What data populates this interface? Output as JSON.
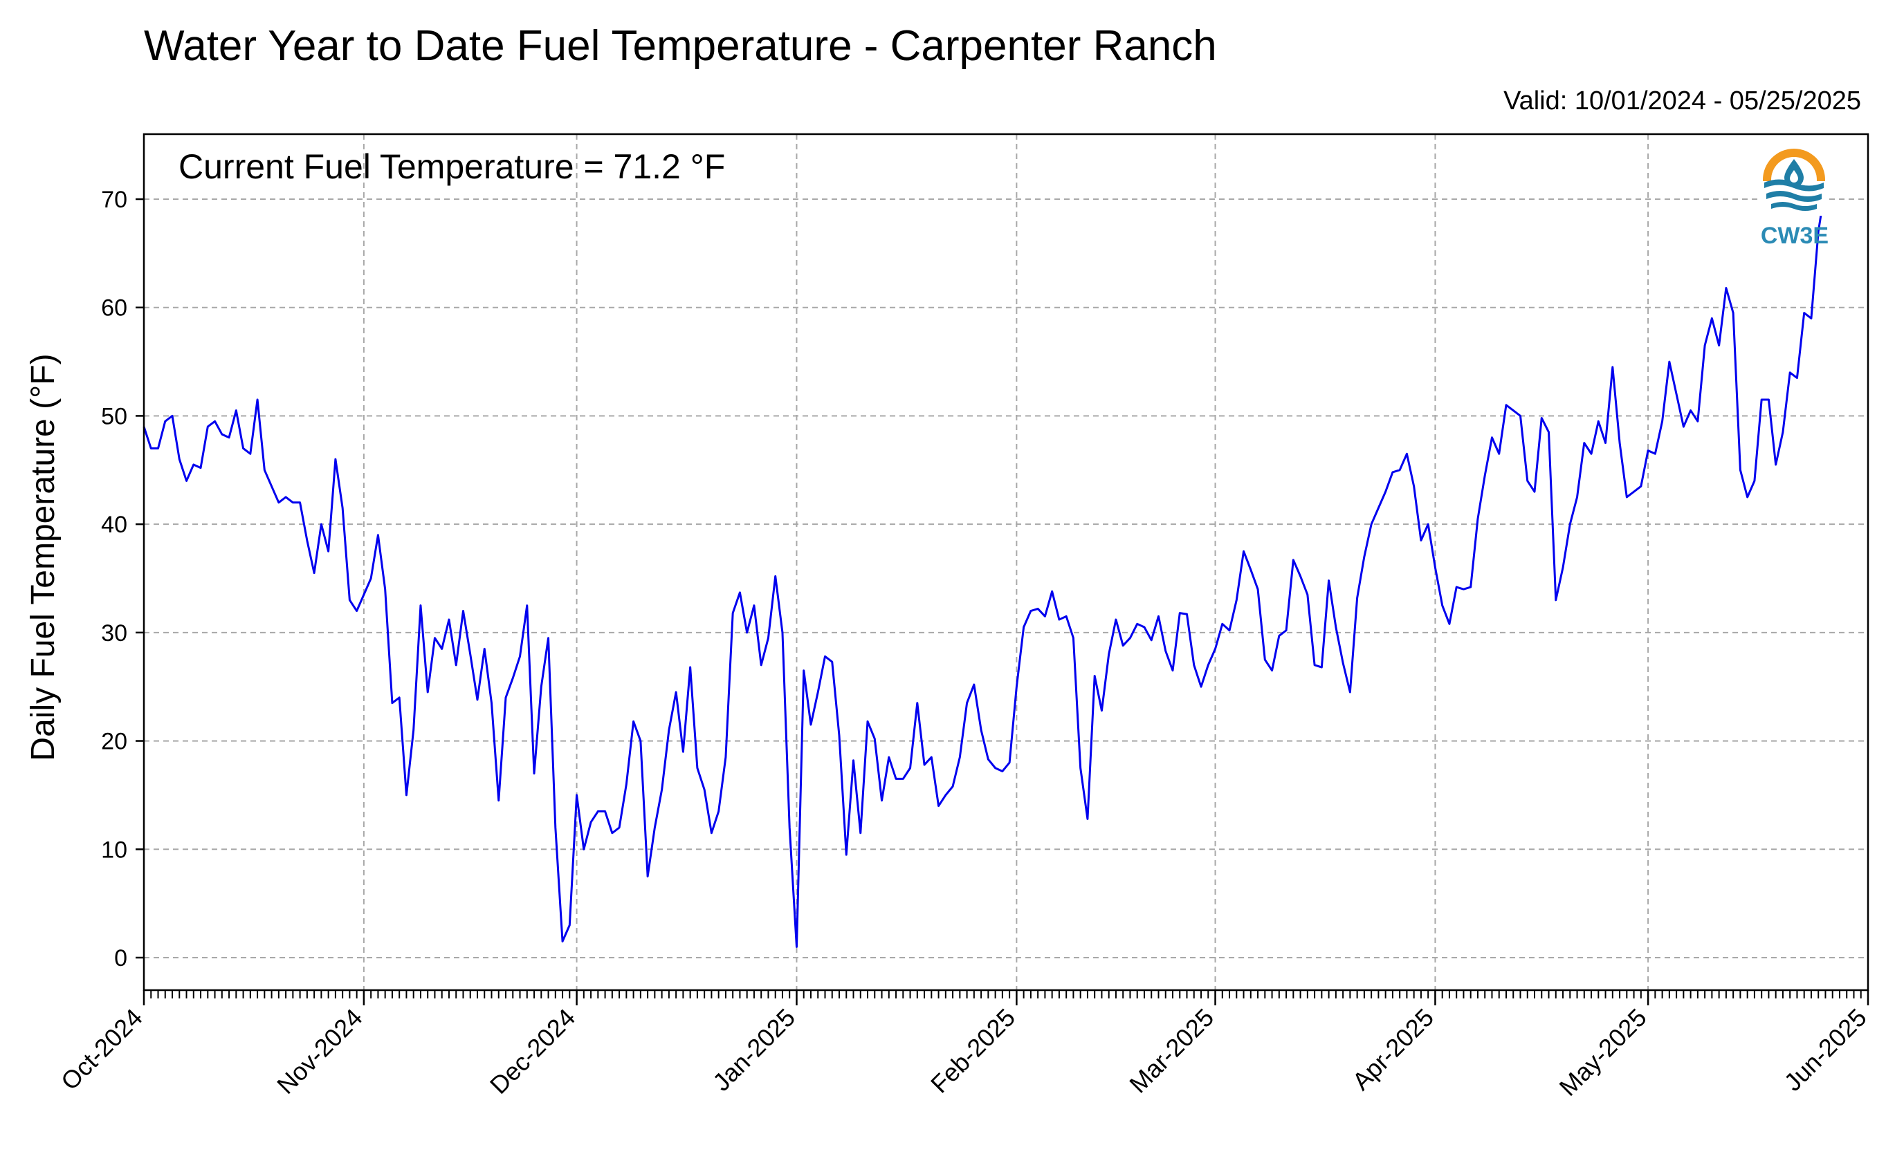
{
  "chart_data": {
    "type": "line",
    "title": "Water Year to Date Fuel Temperature - Carpenter Ranch",
    "subtitle": "Valid: 10/01/2024 - 05/25/2025",
    "annotation": "Current Fuel Temperature = 71.2 °F",
    "xlabel": "",
    "ylabel": "Daily Fuel Temperature (°F)",
    "xlim": [
      "2024-10-01",
      "2025-06-01"
    ],
    "ylim": [
      -3,
      76
    ],
    "yticks": [
      0,
      10,
      20,
      30,
      40,
      50,
      60,
      70
    ],
    "xticks": [
      {
        "date": "2024-10-01",
        "label": "Oct-2024"
      },
      {
        "date": "2024-11-01",
        "label": "Nov-2024"
      },
      {
        "date": "2024-12-01",
        "label": "Dec-2024"
      },
      {
        "date": "2025-01-01",
        "label": "Jan-2025"
      },
      {
        "date": "2025-02-01",
        "label": "Feb-2025"
      },
      {
        "date": "2025-03-01",
        "label": "Mar-2025"
      },
      {
        "date": "2025-04-01",
        "label": "Apr-2025"
      },
      {
        "date": "2025-05-01",
        "label": "May-2025"
      },
      {
        "date": "2025-06-01",
        "label": "Jun-2025"
      }
    ],
    "grid": true,
    "line_color": "#0000ee",
    "logo": {
      "text": "CW3E",
      "ring_color": "#f39a1e",
      "wave_color": "#1f7ea6",
      "text_color": "#2b8bb5"
    },
    "series": [
      {
        "start_date": "2024-10-01",
        "values": [
          49,
          47,
          47,
          49.5,
          50,
          46,
          44,
          45.5,
          45.2,
          49,
          49.5,
          48.3,
          48,
          50.5,
          47,
          46.5,
          51.5,
          45,
          43.5,
          42,
          42.5,
          42,
          42,
          38.5,
          35.5,
          40,
          37.5,
          46,
          41.5,
          33,
          32,
          33.5,
          35,
          39,
          34,
          23.5,
          24,
          15,
          21,
          32.5,
          24.5,
          29.5,
          28.5,
          31.2,
          27,
          32,
          28,
          23.8,
          28.5,
          23.5,
          14.5,
          24,
          25.8,
          27.8,
          32.5,
          17,
          25,
          29.5,
          12,
          1.5,
          3,
          15,
          10,
          12.5,
          13.5,
          13.5,
          11.5,
          12,
          16,
          21.8,
          20,
          7.5,
          12,
          15.5,
          21,
          24.5,
          19,
          26.8,
          17.5,
          15.5,
          11.5,
          13.5,
          18.5,
          31.8,
          33.7,
          30,
          32.5,
          27,
          29.5,
          35.2,
          30,
          12,
          1,
          26.5,
          21.5,
          24.5,
          27.8,
          27.3,
          20.5,
          9.5,
          18.2,
          11.5,
          21.8,
          20.2,
          14.5,
          18.5,
          16.5,
          16.5,
          17.5,
          23.5,
          17.8,
          18.5,
          14,
          15,
          15.8,
          18.5,
          23.5,
          25.2,
          21,
          18.3,
          17.5,
          17.2,
          18,
          25,
          30.5,
          32,
          32.2,
          31.5,
          33.8,
          31.2,
          31.5,
          29.5,
          17.5,
          12.8,
          26,
          22.8,
          28,
          31.2,
          28.8,
          29.5,
          30.8,
          30.5,
          29.3,
          31.5,
          28.3,
          26.5,
          31.8,
          31.7,
          27,
          25,
          27,
          28.5,
          30.8,
          30.2,
          33,
          37.5,
          35.8,
          34,
          27.5,
          26.5,
          29.7,
          30.2,
          36.7,
          35.2,
          33.5,
          27,
          26.8,
          34.8,
          30.5,
          27.2,
          24.5,
          33.2,
          37,
          40,
          41.5,
          43,
          44.8,
          45,
          46.5,
          43.5,
          38.5,
          40,
          36,
          32.5,
          30.8,
          34.2,
          34,
          34.2,
          40.5,
          44.5,
          48,
          46.5,
          51,
          50.5,
          50,
          44,
          43,
          49.8,
          48.5,
          33,
          36,
          40,
          42.5,
          47.5,
          46.5,
          49.5,
          47.5,
          54.5,
          47.5,
          42.5,
          43,
          43.5,
          46.8,
          46.5,
          49.5,
          55,
          52,
          49,
          50.5,
          49.5,
          56.5,
          59,
          56.5,
          61.8,
          59.5,
          45,
          42.5,
          44,
          51.5,
          51.5,
          45.5,
          48.5,
          54,
          53.5,
          59.5,
          59,
          67,
          71.2
        ]
      }
    ]
  }
}
